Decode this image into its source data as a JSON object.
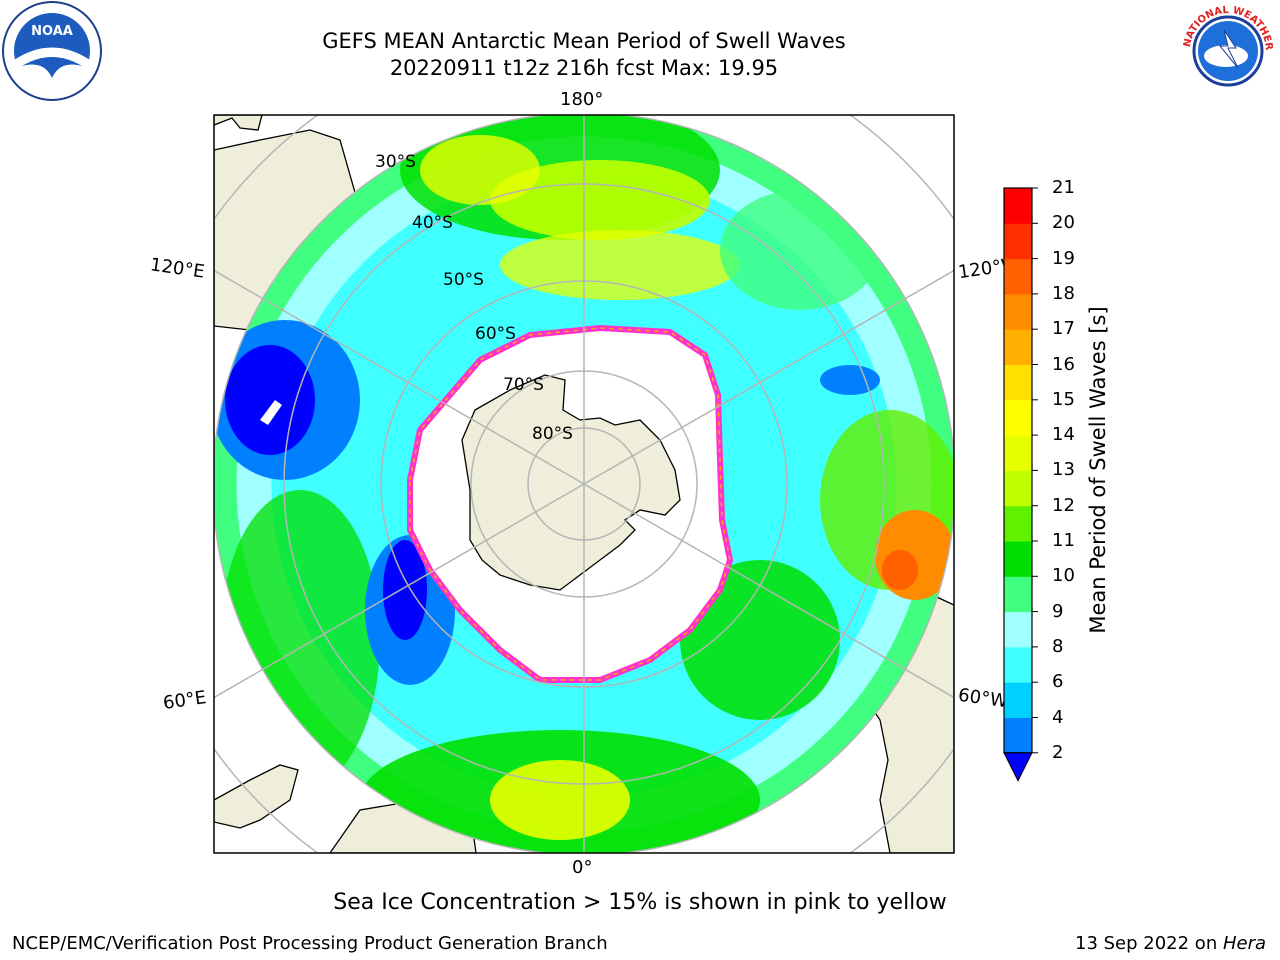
{
  "title": {
    "line1": "GEFS MEAN Antarctic Mean Period of Swell Waves",
    "line2": "20220911 t12z 216h fcst   Max: 19.95"
  },
  "map": {
    "projection": "south-polar-stereographic",
    "lon_labels": {
      "top": "180°",
      "bottom": "0°",
      "left_upper": "120°E",
      "left_lower": "60°E",
      "right_upper": "120°W",
      "right_lower": "60°W"
    },
    "lat_labels": [
      "30°S",
      "40°S",
      "50°S",
      "60°S",
      "70°S",
      "80°S"
    ],
    "colors": {
      "land": "#efeedb",
      "ice_edge": "#ff33cc",
      "grid": "#b5b5b5"
    }
  },
  "colorbar": {
    "title": "Mean Period of Swell Waves [s]",
    "ticks": [
      "2",
      "4",
      "6",
      "8",
      "9",
      "10",
      "11",
      "12",
      "13",
      "14",
      "15",
      "16",
      "17",
      "18",
      "19",
      "20",
      "21"
    ],
    "colors": [
      "#0080ff",
      "#00d0ff",
      "#40ffff",
      "#a0ffff",
      "#40ff80",
      "#00e000",
      "#60f000",
      "#c0ff00",
      "#e8ff00",
      "#ffff00",
      "#ffe000",
      "#ffb000",
      "#ff8c00",
      "#ff6000",
      "#ff3000",
      "#ff0000"
    ],
    "under_color": "#0000ff"
  },
  "caption": "Sea Ice Concentration > 15% is shown in pink to yellow",
  "footer": {
    "left": "NCEP/EMC/Verification Post Processing Product Generation Branch",
    "right_date": "13 Sep 2022 on ",
    "right_machine": "Hera"
  },
  "logos": {
    "noaa_text": "NOAA",
    "nws_ring_text": "NATIONAL WEATHER SERVICE"
  }
}
